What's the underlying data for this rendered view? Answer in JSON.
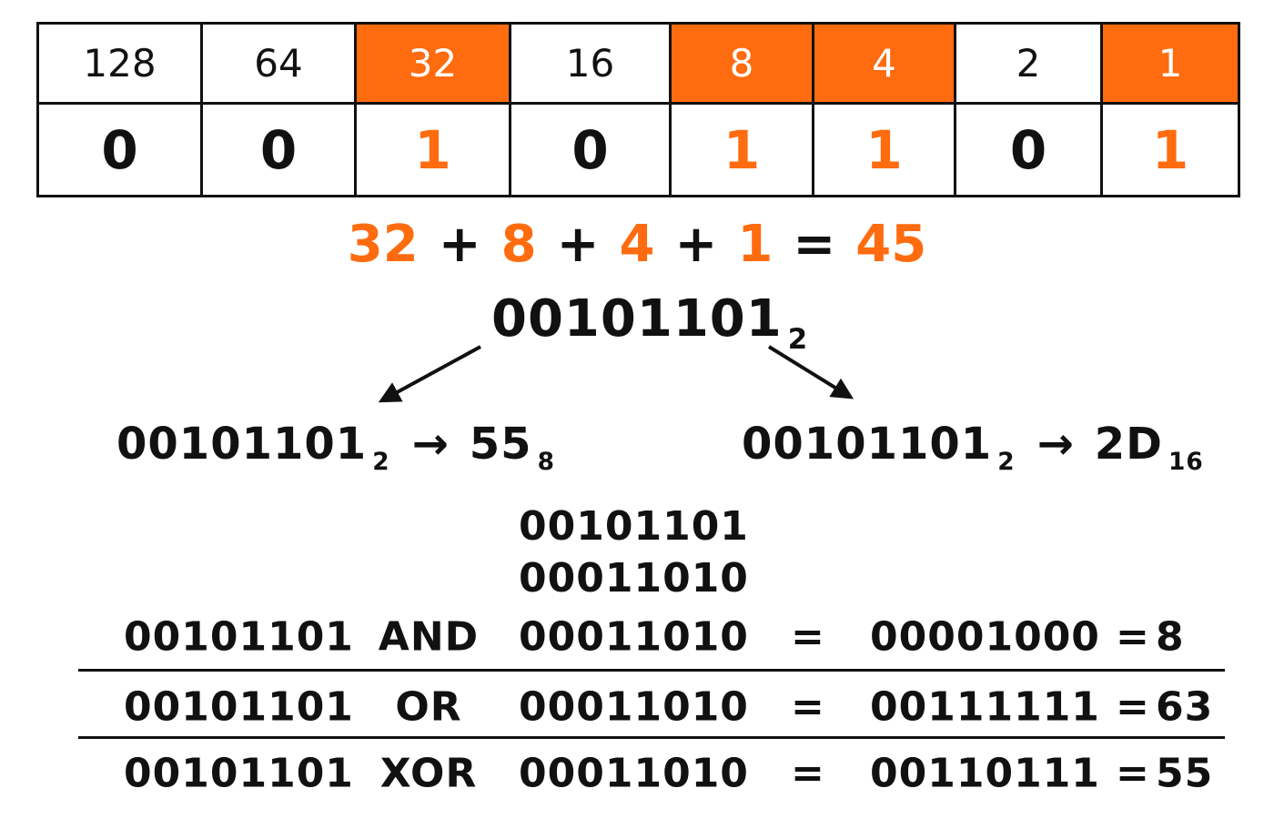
{
  "bit_table": {
    "weights": [
      "128",
      "64",
      "32",
      "16",
      "8",
      "4",
      "2",
      "1"
    ],
    "bits": [
      "0",
      "0",
      "1",
      "0",
      "1",
      "1",
      "0",
      "1"
    ],
    "highlighted": [
      false,
      false,
      true,
      false,
      true,
      true,
      false,
      true
    ],
    "highlight_color": "#ff6b0f"
  },
  "sum": {
    "terms": [
      "32",
      "8",
      "4",
      "1"
    ],
    "plus": "+",
    "equals": "=",
    "result": "45"
  },
  "binary": {
    "value": "00101101",
    "base": "2"
  },
  "conversions": {
    "arrow": "→",
    "octal": {
      "from": "00101101",
      "from_base": "2",
      "value": "55",
      "base": "8"
    },
    "hex": {
      "from": "00101101",
      "from_base": "2",
      "value": "2D",
      "base": "16"
    }
  },
  "bitwise": {
    "stacked_operands": [
      "00101101",
      "00011010"
    ],
    "rows": [
      {
        "left": "00101101",
        "op": "AND",
        "right": "00011010",
        "eq": "=",
        "result": "00001000",
        "dec_eq": "=",
        "decimal": "8"
      },
      {
        "left": "00101101",
        "op": "OR",
        "right": "00011010",
        "eq": "=",
        "result": "00111111",
        "dec_eq": "=",
        "decimal": "63"
      },
      {
        "left": "00101101",
        "op": "XOR",
        "right": "00011010",
        "eq": "=",
        "result": "00110111",
        "dec_eq": "=",
        "decimal": "55"
      }
    ]
  },
  "colors": {
    "accent": "#ff6b0f",
    "ink": "#111111",
    "background": "#ffffff"
  }
}
